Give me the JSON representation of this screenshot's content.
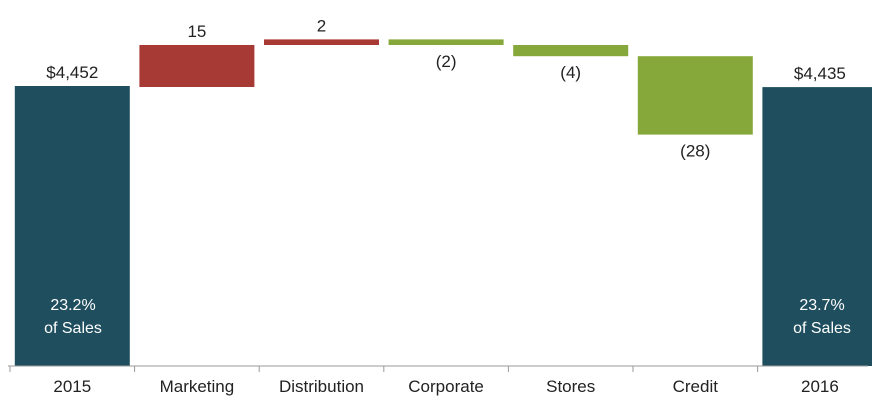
{
  "chart_data": {
    "type": "bar",
    "subtype": "waterfall",
    "categories": [
      "2015",
      "Marketing",
      "Distribution",
      "Corporate",
      "Stores",
      "Credit",
      "2016"
    ],
    "values": [
      4452,
      15,
      2,
      -2,
      -4,
      -28,
      4435
    ],
    "value_labels": [
      "$4,452",
      "15",
      "2",
      "(2)",
      "(4)",
      "(28)",
      "$4,435"
    ],
    "bar_kinds": [
      "total",
      "delta",
      "delta",
      "delta",
      "delta",
      "delta",
      "total"
    ],
    "notes": {
      "start": [
        "23.2%",
        "of Sales"
      ],
      "end": [
        "23.7%",
        "of Sales"
      ]
    },
    "colors": {
      "total": "#1f4e5f",
      "increase": "#a83a36",
      "decrease": "#86a83a",
      "axis": "#999999",
      "text": "#222222"
    },
    "title": "",
    "xlabel": "",
    "ylabel": "",
    "grid": false,
    "legend": "none"
  }
}
